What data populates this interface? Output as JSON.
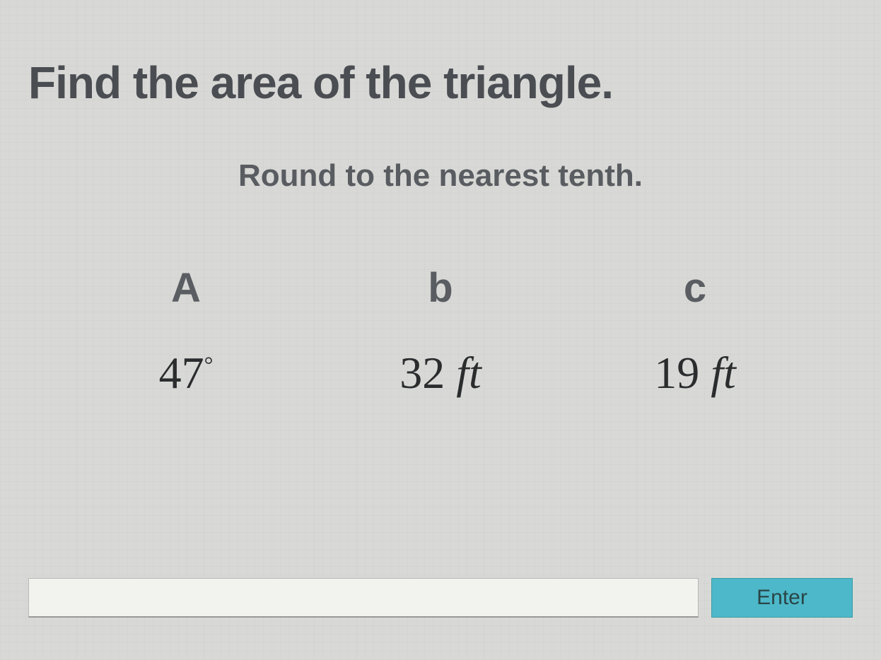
{
  "question": {
    "title": "Find the area of the triangle.",
    "subtitle": "Round to the nearest tenth.",
    "columns": [
      {
        "header": "A",
        "value_num": "47",
        "value_unit": "°",
        "is_degree": true
      },
      {
        "header": "b",
        "value_num": "32",
        "value_unit": "ft",
        "is_degree": false
      },
      {
        "header": "c",
        "value_num": "19",
        "value_unit": "ft",
        "is_degree": false
      }
    ]
  },
  "input": {
    "answer_value": "",
    "enter_label": "Enter"
  },
  "styling": {
    "background_color": "#d8d9d6",
    "title_color": "#4a4d52",
    "title_fontsize": 64,
    "subtitle_color": "#595c60",
    "subtitle_fontsize": 44,
    "header_color": "#5a5d61",
    "header_fontsize": 58,
    "value_color": "#2a2c2e",
    "value_fontsize": 64,
    "value_font": "Georgia serif italic",
    "input_bg": "#f2f2ef",
    "input_border": "#b8b8b5",
    "button_bg": "#4db8c9",
    "button_border": "#3a9aa8",
    "button_text_color": "#2a4548"
  }
}
